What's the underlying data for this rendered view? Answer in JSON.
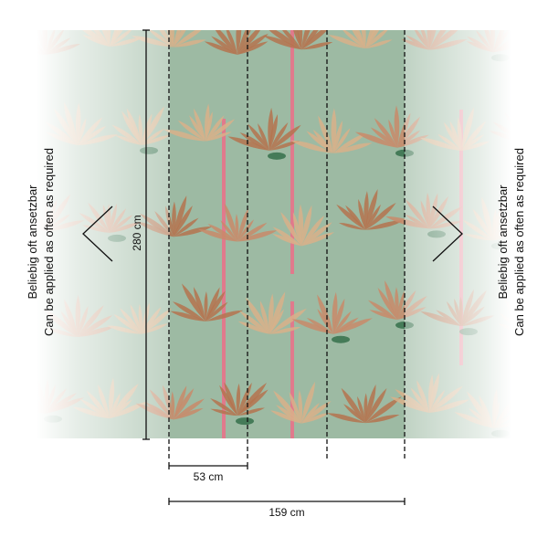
{
  "product": {
    "pattern": "tropical palm and banana leaf wallpaper",
    "background_color": "#9dbaa3",
    "leaf_colors": [
      "#c98a6a",
      "#b5734f",
      "#d9b08a",
      "#e07a8c",
      "#2f6b45"
    ],
    "panel_count": 3
  },
  "labels": {
    "left_line1": "Beliebig oft ansetzbar",
    "left_line2": "Can be applied as often as required",
    "right_line1": "Beliebig oft ansetzbar",
    "right_line2": "Can be applied as often as required"
  },
  "dimensions": {
    "height": "280 cm",
    "panel_width": "53 cm",
    "total_width": "159 cm"
  }
}
